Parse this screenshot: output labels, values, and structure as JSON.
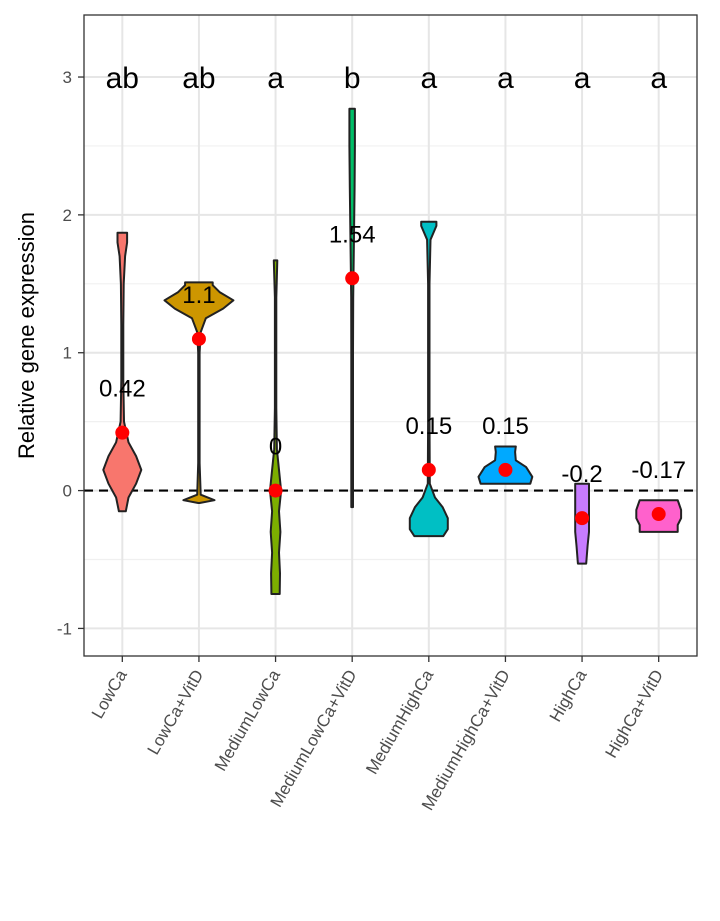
{
  "chart_data": {
    "type": "violin",
    "ylabel": "Relative gene expression",
    "xlabel": "",
    "ylim": [
      -1.2,
      3.45
    ],
    "yticks": [
      -1,
      0,
      1,
      2,
      3
    ],
    "grid": true,
    "legend": "none",
    "reference_line": {
      "y": 0,
      "style": "dashed"
    },
    "mean_point_color": "#ff0000",
    "categories": [
      "LowCa",
      "LowCa+VitD",
      "MediumLowCa",
      "MediumLowCa+VitD",
      "MediumHighCa",
      "MediumHighCa+VitD",
      "HighCa",
      "HighCa+VitD"
    ],
    "groups": [
      {
        "name": "LowCa",
        "color": "#f8766d",
        "mean": 0.42,
        "mean_label": "0.42",
        "letter": "ab",
        "profile": [
          [
            -0.15,
            0.1
          ],
          [
            -0.05,
            0.18
          ],
          [
            0.05,
            0.4
          ],
          [
            0.15,
            0.55
          ],
          [
            0.25,
            0.4
          ],
          [
            0.35,
            0.18
          ],
          [
            0.5,
            0.05
          ],
          [
            0.8,
            0.03
          ],
          [
            1.2,
            0.03
          ],
          [
            1.5,
            0.04
          ],
          [
            1.7,
            0.08
          ],
          [
            1.8,
            0.14
          ],
          [
            1.87,
            0.14
          ]
        ]
      },
      {
        "name": "LowCa+VitD",
        "color": "#cd9600",
        "mean": 1.1,
        "mean_label": "1.1",
        "letter": "ab",
        "profile": [
          [
            -0.09,
            0.02
          ],
          [
            -0.07,
            0.45
          ],
          [
            -0.03,
            0.05
          ],
          [
            0.2,
            0.02
          ],
          [
            0.6,
            0.02
          ],
          [
            1.0,
            0.02
          ],
          [
            1.15,
            0.05
          ],
          [
            1.25,
            0.2
          ],
          [
            1.32,
            0.7
          ],
          [
            1.38,
            1.0
          ],
          [
            1.44,
            0.6
          ],
          [
            1.49,
            0.4
          ],
          [
            1.51,
            0.4
          ]
        ]
      },
      {
        "name": "MediumLowCa",
        "color": "#7cae00",
        "mean": 0.0,
        "mean_label": "0",
        "letter": "a",
        "profile": [
          [
            -0.75,
            0.12
          ],
          [
            -0.6,
            0.13
          ],
          [
            -0.45,
            0.1
          ],
          [
            -0.3,
            0.14
          ],
          [
            -0.15,
            0.1
          ],
          [
            0.0,
            0.16
          ],
          [
            0.15,
            0.1
          ],
          [
            0.3,
            0.04
          ],
          [
            0.6,
            0.02
          ],
          [
            1.0,
            0.02
          ],
          [
            1.4,
            0.02
          ],
          [
            1.67,
            0.05
          ]
        ]
      },
      {
        "name": "MediumLowCa+VitD",
        "color": "#00be67",
        "mean": 1.54,
        "mean_label": "1.54",
        "letter": "b",
        "profile": [
          [
            -0.12,
            0.025
          ],
          [
            0.2,
            0.025
          ],
          [
            0.6,
            0.025
          ],
          [
            1.0,
            0.025
          ],
          [
            1.4,
            0.03
          ],
          [
            1.8,
            0.05
          ],
          [
            2.2,
            0.07
          ],
          [
            2.5,
            0.08
          ],
          [
            2.77,
            0.08
          ]
        ]
      },
      {
        "name": "MediumHighCa",
        "color": "#00bfc4",
        "mean": 0.15,
        "mean_label": "0.15",
        "letter": "a",
        "profile": [
          [
            -0.33,
            0.42
          ],
          [
            -0.28,
            0.55
          ],
          [
            -0.2,
            0.55
          ],
          [
            -0.12,
            0.4
          ],
          [
            -0.05,
            0.18
          ],
          [
            0.05,
            0.03
          ],
          [
            0.5,
            0.02
          ],
          [
            1.0,
            0.02
          ],
          [
            1.5,
            0.02
          ],
          [
            1.82,
            0.05
          ],
          [
            1.92,
            0.22
          ],
          [
            1.95,
            0.22
          ]
        ]
      },
      {
        "name": "MediumHighCa+VitD",
        "color": "#00a9ff",
        "mean": 0.15,
        "mean_label": "0.15",
        "letter": "a",
        "profile": [
          [
            0.05,
            0.72
          ],
          [
            0.1,
            0.78
          ],
          [
            0.17,
            0.6
          ],
          [
            0.22,
            0.3
          ],
          [
            0.28,
            0.28
          ],
          [
            0.32,
            0.3
          ]
        ]
      },
      {
        "name": "HighCa",
        "color": "#c77cff",
        "mean": -0.2,
        "mean_label": "-0.2",
        "letter": "a",
        "profile": [
          [
            -0.53,
            0.12
          ],
          [
            -0.4,
            0.16
          ],
          [
            -0.3,
            0.2
          ],
          [
            -0.15,
            0.2
          ],
          [
            0.0,
            0.2
          ],
          [
            0.05,
            0.2
          ]
        ]
      },
      {
        "name": "HighCa+VitD",
        "color": "#ff61cc",
        "mean": -0.17,
        "mean_label": "-0.17",
        "letter": "a",
        "profile": [
          [
            -0.3,
            0.55
          ],
          [
            -0.25,
            0.55
          ],
          [
            -0.2,
            0.65
          ],
          [
            -0.14,
            0.65
          ],
          [
            -0.09,
            0.58
          ],
          [
            -0.07,
            0.55
          ]
        ]
      }
    ]
  }
}
